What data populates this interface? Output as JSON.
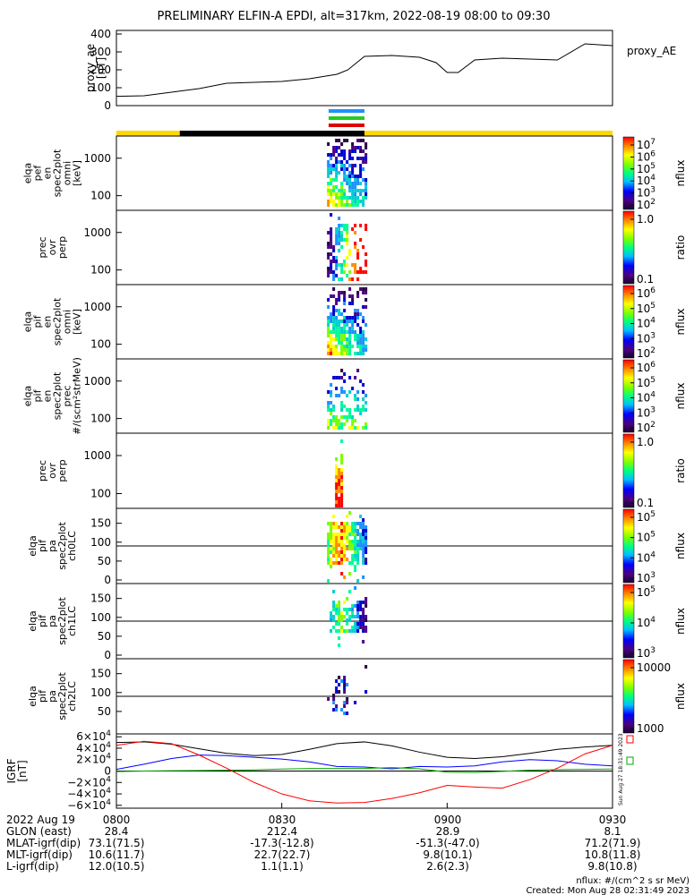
{
  "title": "PRELIMINARY ELFIN-A EPDI, alt=317km, 2022-08-19 08:00 to 09:30",
  "chart_data": [
    {
      "type": "line",
      "ylabel": "proxy_ae\n[nT]",
      "legend": "proxy_AE",
      "ylim": [
        0,
        420
      ],
      "yticks": [
        "0",
        "100",
        "200",
        "300",
        "400"
      ],
      "x_minutes": [
        0,
        5,
        10,
        15,
        20,
        25,
        30,
        35,
        40,
        42,
        45,
        50,
        55,
        58,
        60,
        62,
        65,
        70,
        75,
        80,
        85,
        90
      ],
      "values": [
        52,
        55,
        75,
        95,
        125,
        130,
        135,
        150,
        175,
        200,
        275,
        280,
        270,
        240,
        185,
        185,
        255,
        265,
        260,
        255,
        345,
        335
      ]
    },
    {
      "type": "heatmap",
      "ylabel": "elqa\npef\nen\nspec2plot\nomni\n[keV]",
      "yticks": [
        "100",
        "1000"
      ],
      "colorbar": {
        "label": "nflux",
        "ticks": [
          "10^7",
          "10^6",
          "10^5",
          "10^4",
          "10^3",
          "10^2"
        ]
      }
    },
    {
      "type": "heatmap",
      "ylabel": "prec\novr\nperp",
      "yticks": [
        "100",
        "1000"
      ],
      "colorbar": {
        "label": "ratio",
        "ticks": [
          "1.0",
          "0.1"
        ]
      }
    },
    {
      "type": "heatmap",
      "ylabel": "elqa\npif\nen\nspec2plot\nomni\n[keV]",
      "yticks": [
        "100",
        "1000"
      ],
      "colorbar": {
        "label": "nflux",
        "ticks": [
          "10^6",
          "10^5",
          "10^4",
          "10^3",
          "10^2"
        ]
      }
    },
    {
      "type": "heatmap",
      "ylabel": "elqa\npif\nen\nspec2plot\nprec\n#/(scm²strMeV)",
      "yticks": [
        "100",
        "1000"
      ],
      "colorbar": {
        "label": "nflux",
        "ticks": [
          "10^6",
          "10^5",
          "10^4",
          "10^3",
          "10^2"
        ]
      }
    },
    {
      "type": "heatmap",
      "ylabel": "prec\novr\nperp",
      "yticks": [
        "100",
        "1000"
      ],
      "colorbar": {
        "label": "ratio",
        "ticks": [
          "1.0",
          "0.1"
        ]
      }
    },
    {
      "type": "heatmap",
      "ylabel": "elqa\npif\npa\nspec2plot\nch0LC",
      "yticks": [
        "0",
        "50",
        "100",
        "150"
      ],
      "colorbar": {
        "label": "nflux",
        "ticks": [
          "10^5",
          "10^5",
          "10^4",
          "10^3"
        ]
      }
    },
    {
      "type": "heatmap",
      "ylabel": "elqa\npif\npa\nspec2plot\nch1LC",
      "yticks": [
        "0",
        "50",
        "100",
        "150"
      ],
      "colorbar": {
        "label": "nflux",
        "ticks": [
          "10^5",
          "10^4",
          "10^3"
        ]
      }
    },
    {
      "type": "heatmap",
      "ylabel": "elqa\npif\npa\nspec2plot\nch2LC",
      "yticks": [
        "50",
        "100",
        "150"
      ],
      "colorbar": {
        "label": "nflux",
        "ticks": [
          "10000",
          "1000"
        ]
      }
    },
    {
      "type": "line",
      "ylabel": "IGRF\n[nT]",
      "ylim": [
        -65000,
        65000
      ],
      "yticks": [
        "6×10^4",
        "4×10^4",
        "2×10^4",
        "0",
        "−2×10^4",
        "−4×10^4",
        "−6×10^4"
      ],
      "x_minutes": [
        0,
        5,
        10,
        15,
        20,
        25,
        30,
        35,
        40,
        45,
        50,
        55,
        60,
        65,
        70,
        75,
        80,
        85,
        90
      ],
      "series": [
        {
          "color": "#000000",
          "values": [
            50000,
            51000,
            47000,
            39000,
            31000,
            27000,
            29000,
            38000,
            48000,
            51000,
            44000,
            33000,
            24000,
            22000,
            25000,
            31000,
            38000,
            42000,
            45000
          ]
        },
        {
          "color": "#0000ff",
          "values": [
            3000,
            12000,
            22000,
            28000,
            27000,
            24000,
            21000,
            16000,
            8000,
            7000,
            4000,
            8000,
            7000,
            9000,
            16000,
            20000,
            18000,
            12000,
            9000
          ]
        },
        {
          "color": "#00aa00",
          "values": [
            -1000,
            0,
            500,
            1000,
            1500,
            2000,
            3500,
            4500,
            4500,
            4500,
            6000,
            4000,
            -2000,
            -2500,
            -500,
            1500,
            2500,
            3000,
            3500
          ]
        },
        {
          "color": "#ff0000",
          "values": [
            45000,
            52000,
            48000,
            28000,
            5000,
            -20000,
            -40000,
            -52000,
            -56000,
            -55000,
            -48000,
            -38000,
            -25000,
            -28000,
            -30000,
            -15000,
            5000,
            30000,
            45000
          ]
        }
      ]
    }
  ],
  "bottom": {
    "times": [
      "0800",
      "0830",
      "0900",
      "0930"
    ],
    "rows": [
      {
        "label": "2022 Aug 19",
        "values": [
          "0800",
          "0830",
          "0900",
          "0930"
        ]
      },
      {
        "label": "GLON (east)",
        "values": [
          "28.4",
          "212.4",
          "28.9",
          "8.1"
        ]
      },
      {
        "label": "MLAT-igrf(dip)",
        "values": [
          "73.1(71.5)",
          "-17.3(-12.8)",
          "-51.3(-47.0)",
          "71.2(71.9)"
        ]
      },
      {
        "label": "MLT-igrf(dip)",
        "values": [
          "10.6(11.7)",
          "22.7(22.7)",
          "9.8(10.1)",
          "10.8(11.8)"
        ]
      },
      {
        "label": "L-igrf(dip)",
        "values": [
          "12.0(10.5)",
          "1.1(1.1)",
          "2.6(2.3)",
          "9.8(10.8)"
        ]
      }
    ],
    "footer1": "nflux: #/(cm^2 s sr MeV)",
    "footer2": "Created: Mon Aug 28 02:31:49 2023",
    "stamp": "Sun Aug 27 18:31:49 2023"
  }
}
